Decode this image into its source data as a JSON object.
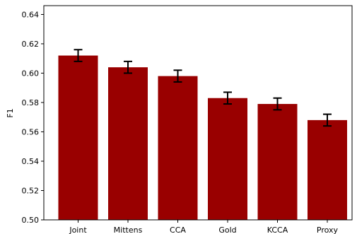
{
  "chart_data": {
    "type": "bar",
    "categories": [
      "Joint",
      "Mittens",
      "CCA",
      "Gold",
      "KCCA",
      "Proxy"
    ],
    "values": [
      0.612,
      0.604,
      0.598,
      0.583,
      0.579,
      0.568
    ],
    "errors": [
      0.004,
      0.004,
      0.004,
      0.004,
      0.004,
      0.004
    ],
    "title": "",
    "xlabel": "",
    "ylabel": "F1",
    "ylim": [
      0.5,
      0.646
    ],
    "yticks": [
      0.5,
      0.52,
      0.54,
      0.56,
      0.58,
      0.6,
      0.62,
      0.64
    ],
    "ytick_labels": [
      "0.50",
      "0.52",
      "0.54",
      "0.56",
      "0.58",
      "0.60",
      "0.62",
      "0.64"
    ],
    "bar_color": "#990000",
    "grid": false,
    "legend": "none"
  }
}
